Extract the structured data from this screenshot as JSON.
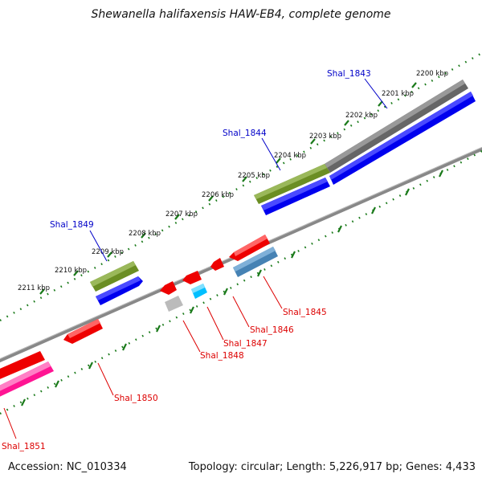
{
  "title": "Shewanella halifaxensis HAW-EB4, complete genome",
  "footer": {
    "accession": "Accession: NC_010334",
    "summary": "Topology: circular; Length: 5,226,917 bp; Genes: 4,433"
  },
  "colors": {
    "forward_label": "#0000c8",
    "reverse_label": "#dd0000",
    "tick": "#1a7a1a",
    "backbone": "#888888",
    "cds_blue": "#0000ee",
    "cds_olive": "#6b8e23",
    "cds_gray": "#666666",
    "cds_red": "#ee0000",
    "cds_steel": "#4682b4",
    "cds_cyan": "#00bfff",
    "cds_light": "#bbbbbb",
    "cds_pink": "#ff1493"
  },
  "map": {
    "scale_labels": [
      "2200 kbp",
      "2201 kbp",
      "2202 kbp",
      "2203 kbp",
      "2204 kbp",
      "2205 kbp",
      "2206 kbp",
      "2207 kbp",
      "2208 kbp",
      "2209 kbp",
      "2210 kbp",
      "2211 kbp"
    ],
    "gene_labels": [
      {
        "text": "Shal_1843",
        "strand": "forward"
      },
      {
        "text": "Shal_1844",
        "strand": "forward"
      },
      {
        "text": "Shal_1849",
        "strand": "forward"
      },
      {
        "text": "Shal_1845",
        "strand": "reverse"
      },
      {
        "text": "Shal_1846",
        "strand": "reverse"
      },
      {
        "text": "Shal_1847",
        "strand": "reverse"
      },
      {
        "text": "Shal_1848",
        "strand": "reverse"
      },
      {
        "text": "Shal_1850",
        "strand": "reverse"
      },
      {
        "text": "Shal_1851",
        "strand": "reverse"
      }
    ]
  }
}
